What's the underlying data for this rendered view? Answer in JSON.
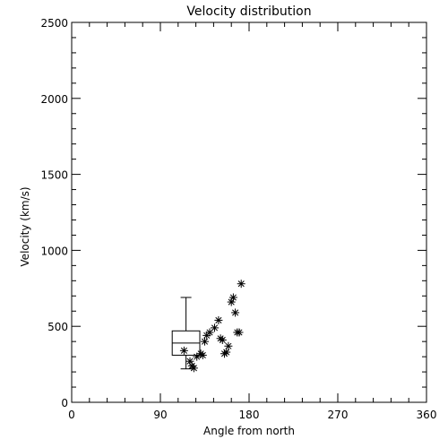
{
  "chart_data": {
    "type": "scatter",
    "title": "Velocity distribution",
    "xlabel": "Angle from north",
    "ylabel": "Velocity (km/s)",
    "xlim": [
      0,
      360
    ],
    "ylim": [
      0,
      2500
    ],
    "xticks": [
      0,
      90,
      180,
      270,
      360
    ],
    "yticks": [
      0,
      500,
      1000,
      1500,
      2000,
      2500
    ],
    "xticklabels": [
      "0",
      "90",
      "180",
      "270",
      "360"
    ],
    "yticklabels": [
      "0",
      "500",
      "1000",
      "1500",
      "2000",
      "2500"
    ],
    "grid": false,
    "boxplot": {
      "x_from": 102,
      "x_to": 130,
      "whisker_low": 220,
      "q1": 310,
      "median": 390,
      "q3": 470,
      "whisker_high": 690
    },
    "series": [
      {
        "marker": "asterisk",
        "points": [
          {
            "x": 114,
            "y": 340
          },
          {
            "x": 120,
            "y": 270
          },
          {
            "x": 122,
            "y": 240
          },
          {
            "x": 124,
            "y": 225
          },
          {
            "x": 127,
            "y": 300
          },
          {
            "x": 131,
            "y": 320
          },
          {
            "x": 133,
            "y": 310
          },
          {
            "x": 135,
            "y": 400
          },
          {
            "x": 137,
            "y": 440
          },
          {
            "x": 140,
            "y": 460
          },
          {
            "x": 145,
            "y": 490
          },
          {
            "x": 149,
            "y": 540
          },
          {
            "x": 151,
            "y": 420
          },
          {
            "x": 153,
            "y": 410
          },
          {
            "x": 155,
            "y": 320
          },
          {
            "x": 157,
            "y": 330
          },
          {
            "x": 159,
            "y": 370
          },
          {
            "x": 162,
            "y": 660
          },
          {
            "x": 164,
            "y": 690
          },
          {
            "x": 166,
            "y": 590
          },
          {
            "x": 168,
            "y": 460
          },
          {
            "x": 170,
            "y": 460
          },
          {
            "x": 172,
            "y": 780
          }
        ]
      }
    ]
  }
}
